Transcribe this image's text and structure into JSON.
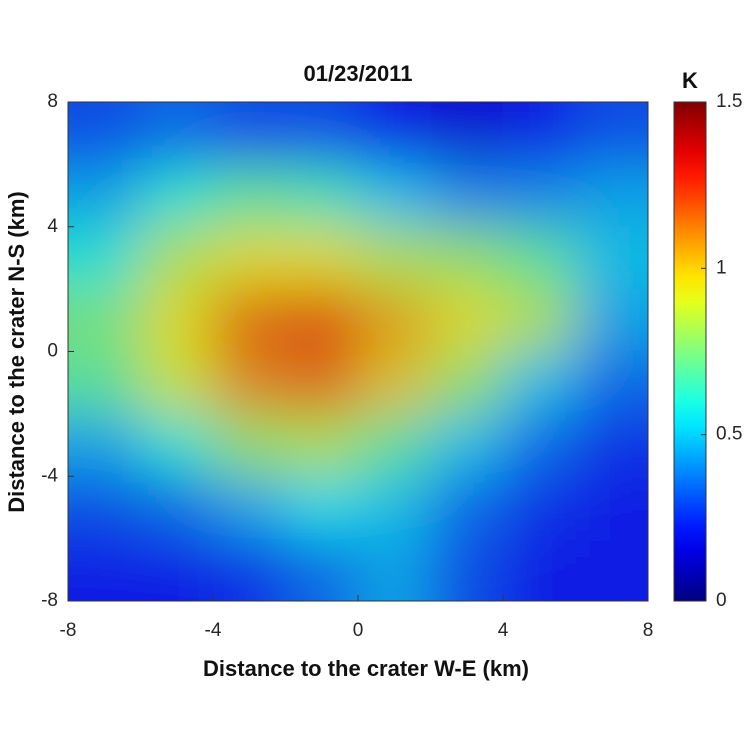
{
  "chart_data": {
    "type": "heatmap",
    "title": "01/23/2011",
    "xlabel": "Distance to the crater W-E (km)",
    "ylabel": "Distance to the crater N-S (km)",
    "xlim": [
      -8,
      8
    ],
    "xticks": [
      -8,
      -4,
      0,
      4,
      8
    ],
    "ylim": [
      -8,
      8
    ],
    "yticks": [
      -8,
      -4,
      0,
      4,
      8
    ],
    "x": [
      -7,
      -5,
      -3,
      -1,
      1,
      3,
      5,
      7
    ],
    "y": [
      7,
      5,
      3,
      1,
      -1,
      -3,
      -5,
      -7
    ],
    "z": [
      [
        0.3,
        0.35,
        0.3,
        0.3,
        0.2,
        0.15,
        0.2,
        0.3
      ],
      [
        0.45,
        0.6,
        0.7,
        0.65,
        0.5,
        0.4,
        0.4,
        0.45
      ],
      [
        0.6,
        0.85,
        0.95,
        0.95,
        0.85,
        0.8,
        0.7,
        0.5
      ],
      [
        0.75,
        0.95,
        1.15,
        1.2,
        1.05,
        0.95,
        0.85,
        0.45
      ],
      [
        0.7,
        0.9,
        1.1,
        1.15,
        1.0,
        0.8,
        0.5,
        0.35
      ],
      [
        0.45,
        0.6,
        0.8,
        0.85,
        0.7,
        0.5,
        0.35,
        0.25
      ],
      [
        0.3,
        0.35,
        0.45,
        0.55,
        0.5,
        0.35,
        0.25,
        0.2
      ],
      [
        0.2,
        0.2,
        0.25,
        0.35,
        0.45,
        0.3,
        0.2,
        0.2
      ]
    ],
    "colorbar_label": "K",
    "clim": [
      0,
      1.5
    ],
    "cticks": [
      0,
      0.5,
      1,
      1.5
    ],
    "colormap": "jet"
  }
}
